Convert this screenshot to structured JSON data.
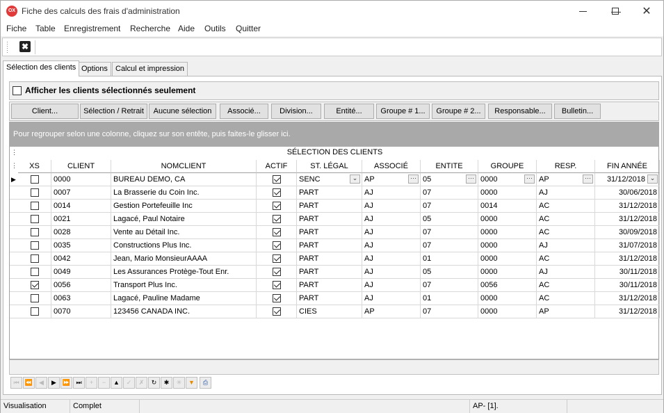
{
  "window": {
    "title": "Fiche des calculs des frais d'administration",
    "icon": "ox-app-icon"
  },
  "menu": [
    "Fiche",
    "Table",
    "Enregistrement",
    "Recherche",
    "Aide",
    "Outils",
    "Quitter"
  ],
  "tabs": [
    {
      "label": "Sélection des clients",
      "active": true
    },
    {
      "label": "Options",
      "active": false
    },
    {
      "label": "Calcul et impression",
      "active": false
    }
  ],
  "option": {
    "label": "Afficher les clients sélectionnés seulement",
    "checked": false
  },
  "buttons": [
    "Client...",
    "Sélection / Retrait",
    "Aucune sélection",
    "Associé...",
    "Division...",
    "Entité...",
    "Groupe # 1...",
    "Groupe # 2...",
    "Responsable...",
    "Bulletin..."
  ],
  "group_hint": "Pour regrouper selon une colonne, cliquez sur son entête, puis faites-le glisser ici.",
  "grid": {
    "caption": "SÉLECTION DES CLIENTS",
    "columns": [
      "XS",
      "CLIENT",
      "NOMCLIENT",
      "ACTIF",
      "ST. LÉGAL",
      "ASSOCIÉ",
      "ENTITE",
      "GROUPE",
      "RESP.",
      "FIN ANNÉE"
    ],
    "rows": [
      {
        "xs": false,
        "client": "0000",
        "nom": "BUREAU DEMO, CA",
        "actif": true,
        "statut": "SENC",
        "associe": "AP",
        "entite": "05",
        "groupe": "0000",
        "resp": "AP",
        "fin": "31/12/2018"
      },
      {
        "xs": false,
        "client": "0007",
        "nom": "La Brasserie du Coin Inc.",
        "actif": true,
        "statut": "PART",
        "associe": "AJ",
        "entite": "07",
        "groupe": "0000",
        "resp": "AJ",
        "fin": "30/06/2018"
      },
      {
        "xs": false,
        "client": "0014",
        "nom": "Gestion Portefeuille Inc",
        "actif": true,
        "statut": "PART",
        "associe": "AJ",
        "entite": "07",
        "groupe": "0014",
        "resp": "AC",
        "fin": "31/12/2018"
      },
      {
        "xs": false,
        "client": "0021",
        "nom": "Lagacé, Paul Notaire",
        "actif": true,
        "statut": "PART",
        "associe": "AJ",
        "entite": "05",
        "groupe": "0000",
        "resp": "AC",
        "fin": "31/12/2018"
      },
      {
        "xs": false,
        "client": "0028",
        "nom": "Vente au Détail Inc.",
        "actif": true,
        "statut": "PART",
        "associe": "AJ",
        "entite": "07",
        "groupe": "0000",
        "resp": "AC",
        "fin": "30/09/2018"
      },
      {
        "xs": false,
        "client": "0035",
        "nom": "Constructions Plus  Inc.",
        "actif": true,
        "statut": "PART",
        "associe": "AJ",
        "entite": "07",
        "groupe": "0000",
        "resp": "AJ",
        "fin": "31/07/2018"
      },
      {
        "xs": false,
        "client": "0042",
        "nom": "Jean, Mario MonsieurAAAA",
        "actif": true,
        "statut": "PART",
        "associe": "AJ",
        "entite": "01",
        "groupe": "0000",
        "resp": "AC",
        "fin": "31/12/2018"
      },
      {
        "xs": false,
        "client": "0049",
        "nom": "Les Assurances Protège-Tout Enr.",
        "actif": true,
        "statut": "PART",
        "associe": "AJ",
        "entite": "05",
        "groupe": "0000",
        "resp": "AJ",
        "fin": "30/11/2018"
      },
      {
        "xs": true,
        "client": "0056",
        "nom": "Transport Plus Inc.",
        "actif": true,
        "statut": "PART",
        "associe": "AJ",
        "entite": "07",
        "groupe": "0056",
        "resp": "AC",
        "fin": "30/11/2018"
      },
      {
        "xs": false,
        "client": "0063",
        "nom": "Lagacé, Pauline Madame",
        "actif": true,
        "statut": "PART",
        "associe": "AJ",
        "entite": "01",
        "groupe": "0000",
        "resp": "AC",
        "fin": "31/12/2018"
      },
      {
        "xs": false,
        "client": "0070",
        "nom": "123456 CANADA INC.",
        "actif": true,
        "statut": "CIES",
        "associe": "AP",
        "entite": "07",
        "groupe": "0000",
        "resp": "AP",
        "fin": "31/12/2018"
      }
    ]
  },
  "status": {
    "mode": "Visualisation",
    "state": "Complet",
    "user": "AP- [1]."
  }
}
